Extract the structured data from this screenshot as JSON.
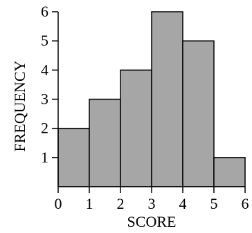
{
  "chart_data": {
    "type": "bar",
    "histogram": true,
    "bins": [
      {
        "start": 0,
        "end": 1,
        "value": 2
      },
      {
        "start": 1,
        "end": 2,
        "value": 3
      },
      {
        "start": 2,
        "end": 3,
        "value": 4
      },
      {
        "start": 3,
        "end": 4,
        "value": 6
      },
      {
        "start": 4,
        "end": 5,
        "value": 5
      },
      {
        "start": 5,
        "end": 6,
        "value": 1
      }
    ],
    "xlabel": "SCORE",
    "ylabel": "FREQUENCY",
    "xlim": [
      0,
      6
    ],
    "ylim": [
      0,
      6
    ],
    "xticks": [
      "0",
      "1",
      "2",
      "3",
      "4",
      "5",
      "6"
    ],
    "yticks": [
      "1",
      "2",
      "3",
      "4",
      "5",
      "6"
    ],
    "bar_color": "#a6a6a6",
    "grid": false
  }
}
